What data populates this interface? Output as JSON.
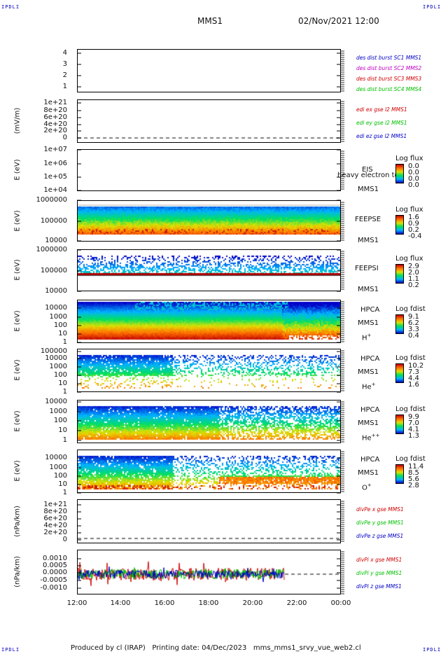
{
  "corners": {
    "tl": "IPDLI",
    "tr": "IPDLI",
    "bl": "IPDLI",
    "br": "IPDLI"
  },
  "header": {
    "spacecraft": "MMS1",
    "datetime": "02/Nov/2021 12:00"
  },
  "footer": {
    "text": "Produced by cl (IRAP)   Printing date: 04/Dec/2023   mms_mms1_srvy_vue_web2.cl"
  },
  "chart_data": {
    "type": "multi-panel",
    "xaxis": {
      "ticks": [
        "12:00",
        "14:00",
        "16:00",
        "18:00",
        "20:00",
        "22:00",
        "00:00"
      ]
    },
    "panels": [
      {
        "id": "p1",
        "ylabel": "",
        "yticks": [
          "4",
          "3",
          "2",
          "1"
        ],
        "legend": [
          "des dist burst SC1 MMS1",
          "des dist burst SC2 MMS2",
          "des dist burst SC3 MMS3",
          "des dist burst SC4 MMS4"
        ],
        "legend_colors": [
          "#0000c8",
          "#c000c0",
          "#d00000",
          "#00c000"
        ]
      },
      {
        "id": "p2",
        "ylabel": "(mV/m)",
        "yticks": [
          "1e+21",
          "8e+20",
          "6e+20",
          "4e+20",
          "2e+20",
          "0"
        ],
        "legend": [
          "edi ex gse l2 MMS1",
          "edi ey gse l2 MMS1",
          "edi ez gse l2 MMS1"
        ],
        "legend_colors": [
          "#d00000",
          "#00c000",
          "#0000c8"
        ]
      },
      {
        "id": "p3",
        "ylabel": "E (eV)",
        "yticks": [
          "1e+07",
          "1e+06",
          "1e+05",
          "1e+04"
        ],
        "instrument": [
          "EIS",
          "MMS1"
        ],
        "overlay": "heavy electron to",
        "cb_title": "Log flux",
        "cb_values": [
          "0.0",
          "0.0",
          "0.0",
          "0.0"
        ]
      },
      {
        "id": "p4",
        "ylabel": "E (eV)",
        "yticks": [
          "1000000",
          "100000",
          "10000"
        ],
        "instrument": [
          "FEEPSE",
          "MMS1"
        ],
        "cb_title": "Log flux",
        "cb_values": [
          "1.6",
          "0.9",
          "0.2",
          "-0.4"
        ]
      },
      {
        "id": "p5",
        "ylabel": "E (eV)",
        "yticks": [
          "1000000",
          "100000",
          "10000"
        ],
        "instrument": [
          "FEEPSI",
          "MMS1"
        ],
        "cb_title": "Log flux",
        "cb_values": [
          "2.9",
          "2.0",
          "1.1",
          "0.2"
        ]
      },
      {
        "id": "p6",
        "ylabel": "E (eV)",
        "yticks": [
          "10000",
          "1000",
          "100",
          "10",
          "1"
        ],
        "instrument": [
          "HPCA",
          "MMS1"
        ],
        "species": "H",
        "species_sup": "+",
        "cb_title": "Log fdist",
        "cb_values": [
          "9.1",
          "6.2",
          "3.3",
          "0.4"
        ]
      },
      {
        "id": "p7",
        "ylabel": "E (eV)",
        "yticks": [
          "100000",
          "10000",
          "1000",
          "100",
          "10",
          "1"
        ],
        "instrument": [
          "HPCA",
          "MMS1"
        ],
        "species": "He",
        "species_sup": "+",
        "cb_title": "Log fdist",
        "cb_values": [
          "10.2",
          "7.3",
          "4.4",
          "1.6"
        ]
      },
      {
        "id": "p8",
        "ylabel": "E (eV)",
        "yticks": [
          "10000",
          "1000",
          "100",
          "10",
          "1"
        ],
        "instrument": [
          "HPCA",
          "MMS1"
        ],
        "species": "He",
        "species_sup": "++",
        "cb_title": "Log fdist",
        "cb_values": [
          "9.9",
          "7.0",
          "4.1",
          "1.3"
        ]
      },
      {
        "id": "p9",
        "ylabel": "E (eV)",
        "yticks": [
          "10000",
          "1000",
          "100",
          "10",
          "1"
        ],
        "instrument": [
          "HPCA",
          "MMS1"
        ],
        "species": "O",
        "species_sup": "+",
        "cb_title": "Log fdist",
        "cb_values": [
          "11.4",
          "8.5",
          "5.6",
          "2.8"
        ]
      },
      {
        "id": "p10",
        "ylabel": "(nPa/km)",
        "yticks": [
          "1e+21",
          "8e+20",
          "6e+20",
          "4e+20",
          "2e+20",
          "0"
        ],
        "legend": [
          "divPe x gse MMS1",
          "divPe y gse MMS1",
          "divPe z gse MMS1"
        ],
        "legend_colors": [
          "#d00000",
          "#00c000",
          "#0000c8"
        ]
      },
      {
        "id": "p11",
        "ylabel": "(nPa/km)",
        "yticks": [
          "0.0010",
          "0.0005",
          "0.0000",
          "-0.0005",
          "-0.0010"
        ],
        "legend": [
          "divPi x gse MMS1",
          "divPi y gse MMS1",
          "divPi z gse MMS1"
        ],
        "legend_colors": [
          "#d00000",
          "#00c000",
          "#0000c8"
        ]
      }
    ]
  }
}
